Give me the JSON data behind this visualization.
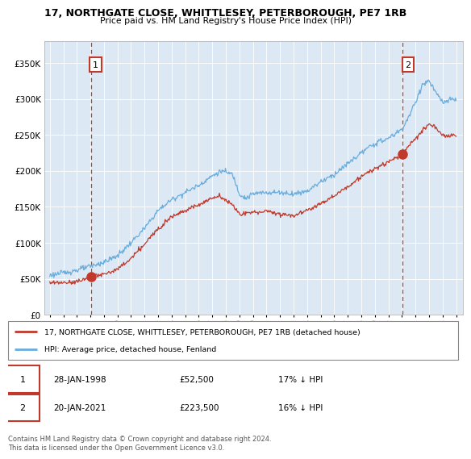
{
  "title": "17, NORTHGATE CLOSE, WHITTLESEY, PETERBOROUGH, PE7 1RB",
  "subtitle": "Price paid vs. HM Land Registry's House Price Index (HPI)",
  "legend_line1": "17, NORTHGATE CLOSE, WHITTLESEY, PETERBOROUGH, PE7 1RB (detached house)",
  "legend_line2": "HPI: Average price, detached house, Fenland",
  "annotation1_date": "28-JAN-1998",
  "annotation1_price": "£52,500",
  "annotation1_hpi": "17% ↓ HPI",
  "annotation2_date": "20-JAN-2021",
  "annotation2_price": "£223,500",
  "annotation2_hpi": "16% ↓ HPI",
  "footnote": "Contains HM Land Registry data © Crown copyright and database right 2024.\nThis data is licensed under the Open Government Licence v3.0.",
  "red_color": "#c0392b",
  "blue_color": "#6aaddc",
  "chart_bg": "#dce9f5",
  "point1_x": 1998.08,
  "point1_y": 52500,
  "point2_x": 2021.05,
  "point2_y": 223500,
  "ylim": [
    0,
    380000
  ],
  "yticks": [
    0,
    50000,
    100000,
    150000,
    200000,
    250000,
    300000,
    350000
  ],
  "xlim_start": 1994.6,
  "xlim_end": 2025.5
}
